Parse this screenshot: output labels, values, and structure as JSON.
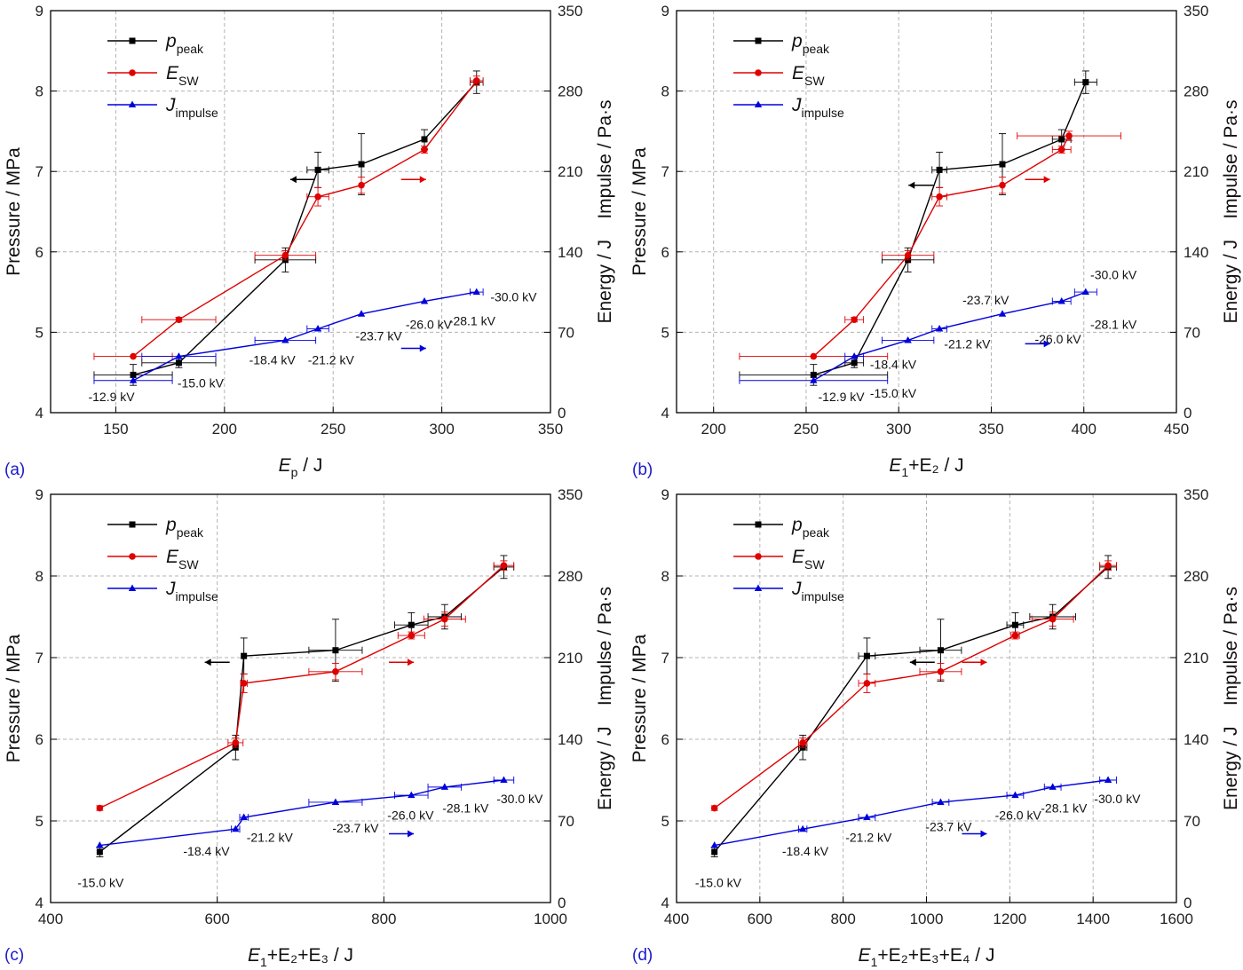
{
  "chart_data": [
    {
      "type": "line",
      "panel_label": "(a)",
      "xlabel_main": "E",
      "xlabel_sub": "p",
      "xlabel_tail": " / J",
      "xlim": [
        120,
        350
      ],
      "xticks": [
        150,
        200,
        250,
        300,
        350
      ],
      "y1label": "Pressure / MPa",
      "y1lim": [
        4,
        9
      ],
      "y1ticks": [
        4,
        5,
        6,
        7,
        8,
        9
      ],
      "y2label": "Energy / J    Impulse / Pa·s",
      "y2lim": [
        0,
        350
      ],
      "y2ticks": [
        0,
        70,
        140,
        210,
        280,
        350
      ],
      "legend": [
        {
          "main": "p",
          "sub": "peak"
        },
        {
          "main": "E",
          "sub": "SW"
        },
        {
          "main": "J",
          "sub": "impulse"
        }
      ],
      "series": [
        {
          "name": "p_peak",
          "axis": "left",
          "color": "#000000",
          "marker": "square",
          "x": [
            158,
            179,
            228,
            243,
            263,
            292,
            316
          ],
          "y": [
            4.47,
            4.62,
            5.9,
            7.02,
            7.09,
            7.4,
            8.11
          ],
          "xerr": [
            18,
            17,
            14,
            5,
            0,
            0,
            3
          ],
          "yerr": [
            0.13,
            0.06,
            0.15,
            0.22,
            0.38,
            0.12,
            0.14
          ]
        },
        {
          "name": "E_SW",
          "axis": "right",
          "color": "#e00000",
          "marker": "circle",
          "x": [
            158,
            179,
            228,
            243,
            263,
            292,
            316
          ],
          "y": [
            49,
            81,
            137,
            188,
            198,
            229,
            289
          ],
          "xerr": [
            18,
            17,
            14,
            5,
            0,
            0,
            3
          ],
          "yerr": [
            0,
            2,
            4,
            8,
            7,
            3,
            4
          ]
        },
        {
          "name": "J_impulse",
          "axis": "right",
          "color": "#0000dd",
          "marker": "triangle",
          "x": [
            158,
            179,
            228,
            243,
            263,
            292,
            316
          ],
          "y": [
            28,
            49,
            63,
            73,
            86,
            97,
            105
          ],
          "xerr": [
            18,
            17,
            14,
            5,
            0,
            0,
            3
          ],
          "yerr": [
            0,
            0,
            0,
            0,
            0,
            0,
            0
          ]
        }
      ],
      "annotations": [
        {
          "text": "-12.9 kV",
          "x": 148,
          "y2": 14
        },
        {
          "text": "-15.0 kV",
          "x": 189,
          "y2": 26
        },
        {
          "text": "-18.4 kV",
          "x": 222,
          "y2": 46
        },
        {
          "text": "-21.2 kV",
          "x": 249,
          "y2": 46
        },
        {
          "text": "-23.7 kV",
          "x": 271,
          "y2": 67
        },
        {
          "text": "-26.0 kV",
          "x": 294,
          "y2": 77
        },
        {
          "text": "-28.1 kV",
          "x": 314,
          "y2": 80
        },
        {
          "text": "-30.0 kV",
          "x": 333,
          "y2": 101
        }
      ],
      "arrows": [
        {
          "color": "#000000",
          "dir": "left",
          "x": 236,
          "y2": 203
        },
        {
          "color": "#e00000",
          "dir": "right",
          "x": 287,
          "y2": 203
        },
        {
          "color": "#0000dd",
          "dir": "right",
          "x": 287,
          "y2": 56
        }
      ]
    },
    {
      "type": "line",
      "panel_label": "(b)",
      "xlabel_main": "E",
      "xlabel_sub": "1",
      "xlabel_tail": "+E₂ / J",
      "xlim": [
        180,
        450
      ],
      "xticks": [
        200,
        250,
        300,
        350,
        400,
        450
      ],
      "y1label": "Pressure / MPa",
      "y1lim": [
        4,
        9
      ],
      "y1ticks": [
        4,
        5,
        6,
        7,
        8,
        9
      ],
      "y2label": "Energy / J    Impulse / Pa·s",
      "y2lim": [
        0,
        350
      ],
      "y2ticks": [
        0,
        70,
        140,
        210,
        280,
        350
      ],
      "legend": [
        {
          "main": "p",
          "sub": "peak"
        },
        {
          "main": "E",
          "sub": "SW"
        },
        {
          "main": "J",
          "sub": "impulse"
        }
      ],
      "series": [
        {
          "name": "p_peak",
          "axis": "left",
          "color": "#000000",
          "marker": "square",
          "x": [
            254,
            276,
            305,
            322,
            356,
            388,
            401
          ],
          "y": [
            4.47,
            4.62,
            5.9,
            7.02,
            7.09,
            7.4,
            8.11
          ],
          "xerr": [
            40,
            5,
            14,
            4,
            0,
            5,
            6
          ],
          "yerr": [
            0.13,
            0.06,
            0.15,
            0.22,
            0.38,
            0.12,
            0.14
          ]
        },
        {
          "name": "E_SW",
          "axis": "right",
          "color": "#e00000",
          "marker": "circle",
          "x": [
            254,
            276,
            305,
            322,
            356,
            388,
            392
          ],
          "y": [
            49,
            81,
            137,
            188,
            198,
            229,
            241
          ],
          "xerr": [
            40,
            5,
            14,
            4,
            0,
            5,
            28
          ],
          "yerr": [
            0,
            2,
            4,
            8,
            7,
            3,
            4
          ]
        },
        {
          "name": "J_impulse",
          "axis": "right",
          "color": "#0000dd",
          "marker": "triangle",
          "x": [
            254,
            276,
            305,
            322,
            356,
            388,
            401
          ],
          "y": [
            28,
            49,
            63,
            73,
            86,
            97,
            105
          ],
          "xerr": [
            40,
            5,
            14,
            4,
            0,
            5,
            6
          ],
          "yerr": [
            0,
            0,
            0,
            0,
            0,
            0,
            0
          ]
        }
      ],
      "annotations": [
        {
          "text": "-12.9 kV",
          "x": 269,
          "y2": 14
        },
        {
          "text": "-15.0 kV",
          "x": 297,
          "y2": 17
        },
        {
          "text": "-18.4 kV",
          "x": 297,
          "y2": 42
        },
        {
          "text": "-21.2 kV",
          "x": 337,
          "y2": 60
        },
        {
          "text": "-23.7 kV",
          "x": 347,
          "y2": 98
        },
        {
          "text": "-26.0 kV",
          "x": 386,
          "y2": 64
        },
        {
          "text": "-28.1 kV",
          "x": 416,
          "y2": 77
        },
        {
          "text": "-30.0 kV",
          "x": 416,
          "y2": 120
        }
      ],
      "arrows": [
        {
          "color": "#000000",
          "dir": "left",
          "x": 312,
          "y2": 198
        },
        {
          "color": "#e00000",
          "dir": "right",
          "x": 375,
          "y2": 203
        },
        {
          "color": "#0000dd",
          "dir": "right",
          "x": 375,
          "y2": 60
        }
      ]
    },
    {
      "type": "line",
      "panel_label": "(c)",
      "xlabel_main": "E",
      "xlabel_sub": "1",
      "xlabel_tail": "+E₂+E₃ / J",
      "xlim": [
        400,
        1000
      ],
      "xticks": [
        400,
        600,
        800,
        1000
      ],
      "y1label": "Pressure / MPa",
      "y1lim": [
        4,
        9
      ],
      "y1ticks": [
        4,
        5,
        6,
        7,
        8,
        9
      ],
      "y2label": "Energy / J    Impulse / Pa·s",
      "y2lim": [
        0,
        350
      ],
      "y2ticks": [
        0,
        70,
        140,
        210,
        280,
        350
      ],
      "legend": [
        {
          "main": "p",
          "sub": "peak"
        },
        {
          "main": "E",
          "sub": "SW"
        },
        {
          "main": "J",
          "sub": "impulse"
        }
      ],
      "series": [
        {
          "name": "p_peak",
          "axis": "left",
          "color": "#000000",
          "marker": "square",
          "x": [
            459,
            622,
            632,
            742,
            833,
            873,
            944
          ],
          "y": [
            4.62,
            5.9,
            7.02,
            7.09,
            7.4,
            7.5,
            8.11
          ],
          "xerr": [
            0,
            0,
            0,
            32,
            20,
            20,
            12
          ],
          "yerr": [
            0.06,
            0.15,
            0.22,
            0.38,
            0.15,
            0.15,
            0.14
          ]
        },
        {
          "name": "E_SW",
          "axis": "right",
          "color": "#e00000",
          "marker": "circle",
          "x": [
            459,
            622,
            632,
            742,
            833,
            873,
            944
          ],
          "y": [
            81,
            137,
            188,
            198,
            229,
            243,
            289
          ],
          "xerr": [
            0,
            9,
            4,
            32,
            16,
            25,
            12
          ],
          "yerr": [
            2,
            4,
            8,
            7,
            3,
            6,
            4
          ]
        },
        {
          "name": "J_impulse",
          "axis": "right",
          "color": "#0000dd",
          "marker": "triangle",
          "x": [
            459,
            622,
            632,
            742,
            833,
            873,
            944
          ],
          "y": [
            49,
            63,
            73,
            86,
            92,
            99,
            105
          ],
          "xerr": [
            0,
            5,
            5,
            32,
            20,
            20,
            12
          ],
          "yerr": [
            0,
            0,
            0,
            0,
            0,
            0,
            0
          ]
        }
      ],
      "annotations": [
        {
          "text": "-15.0 kV",
          "x": 460,
          "y2": 17
        },
        {
          "text": "-18.4 kV",
          "x": 587,
          "y2": 44
        },
        {
          "text": "-21.2 kV",
          "x": 663,
          "y2": 56
        },
        {
          "text": "-23.7 kV",
          "x": 766,
          "y2": 64
        },
        {
          "text": "-26.0 kV",
          "x": 832,
          "y2": 75
        },
        {
          "text": "-28.1 kV",
          "x": 898,
          "y2": 81
        },
        {
          "text": "-30.0 kV",
          "x": 963,
          "y2": 89
        }
      ],
      "arrows": [
        {
          "color": "#000000",
          "dir": "left",
          "x": 600,
          "y2": 206
        },
        {
          "color": "#e00000",
          "dir": "right",
          "x": 821,
          "y2": 206
        },
        {
          "color": "#0000dd",
          "dir": "right",
          "x": 821,
          "y2": 59
        }
      ]
    },
    {
      "type": "line",
      "panel_label": "(d)",
      "xlabel_main": "E",
      "xlabel_sub": "1",
      "xlabel_tail": "+E₂+E₃+E₄ / J",
      "xlim": [
        400,
        1600
      ],
      "xticks": [
        400,
        600,
        800,
        1000,
        1200,
        1400,
        1600
      ],
      "y1label": "Pressure / MPa",
      "y1lim": [
        4,
        9
      ],
      "y1ticks": [
        4,
        5,
        6,
        7,
        8,
        9
      ],
      "y2label": "Energy / J    Impulse / Pa·s",
      "y2lim": [
        0,
        350
      ],
      "y2ticks": [
        0,
        70,
        140,
        210,
        280,
        350
      ],
      "legend": [
        {
          "main": "p",
          "sub": "peak"
        },
        {
          "main": "E",
          "sub": "SW"
        },
        {
          "main": "J",
          "sub": "impulse"
        }
      ],
      "series": [
        {
          "name": "p_peak",
          "axis": "left",
          "color": "#000000",
          "marker": "square",
          "x": [
            491,
            703,
            857,
            1034,
            1213,
            1303,
            1436
          ],
          "y": [
            4.62,
            5.9,
            7.02,
            7.09,
            7.4,
            7.5,
            8.11
          ],
          "xerr": [
            0,
            10,
            20,
            50,
            20,
            55,
            20
          ],
          "yerr": [
            0.06,
            0.15,
            0.22,
            0.38,
            0.15,
            0.15,
            0.14
          ]
        },
        {
          "name": "E_SW",
          "axis": "right",
          "color": "#e00000",
          "marker": "circle",
          "x": [
            491,
            703,
            857,
            1034,
            1213,
            1303,
            1436
          ],
          "y": [
            81,
            137,
            188,
            198,
            229,
            243,
            289
          ],
          "xerr": [
            0,
            10,
            20,
            50,
            10,
            50,
            20
          ],
          "yerr": [
            2,
            4,
            8,
            7,
            3,
            6,
            4
          ]
        },
        {
          "name": "J_impulse",
          "axis": "right",
          "color": "#0000dd",
          "marker": "triangle",
          "x": [
            491,
            703,
            857,
            1034,
            1213,
            1303,
            1436
          ],
          "y": [
            49,
            63,
            73,
            86,
            92,
            99,
            105
          ],
          "xerr": [
            0,
            10,
            20,
            20,
            20,
            20,
            20
          ],
          "yerr": [
            0,
            0,
            0,
            0,
            0,
            0,
            0
          ]
        }
      ],
      "annotations": [
        {
          "text": "-15.0 kV",
          "x": 500,
          "y2": 17
        },
        {
          "text": "-18.4 kV",
          "x": 709,
          "y2": 44
        },
        {
          "text": "-21.2 kV",
          "x": 861,
          "y2": 56
        },
        {
          "text": "-23.7 kV",
          "x": 1053,
          "y2": 65
        },
        {
          "text": "-26.0 kV",
          "x": 1220,
          "y2": 75
        },
        {
          "text": "-28.1 kV",
          "x": 1330,
          "y2": 81
        },
        {
          "text": "-30.0 kV",
          "x": 1458,
          "y2": 89
        }
      ],
      "arrows": [
        {
          "color": "#000000",
          "dir": "left",
          "x": 990,
          "y2": 206
        },
        {
          "color": "#e00000",
          "dir": "right",
          "x": 1115,
          "y2": 206
        },
        {
          "color": "#0000dd",
          "dir": "right",
          "x": 1115,
          "y2": 59
        }
      ]
    }
  ]
}
